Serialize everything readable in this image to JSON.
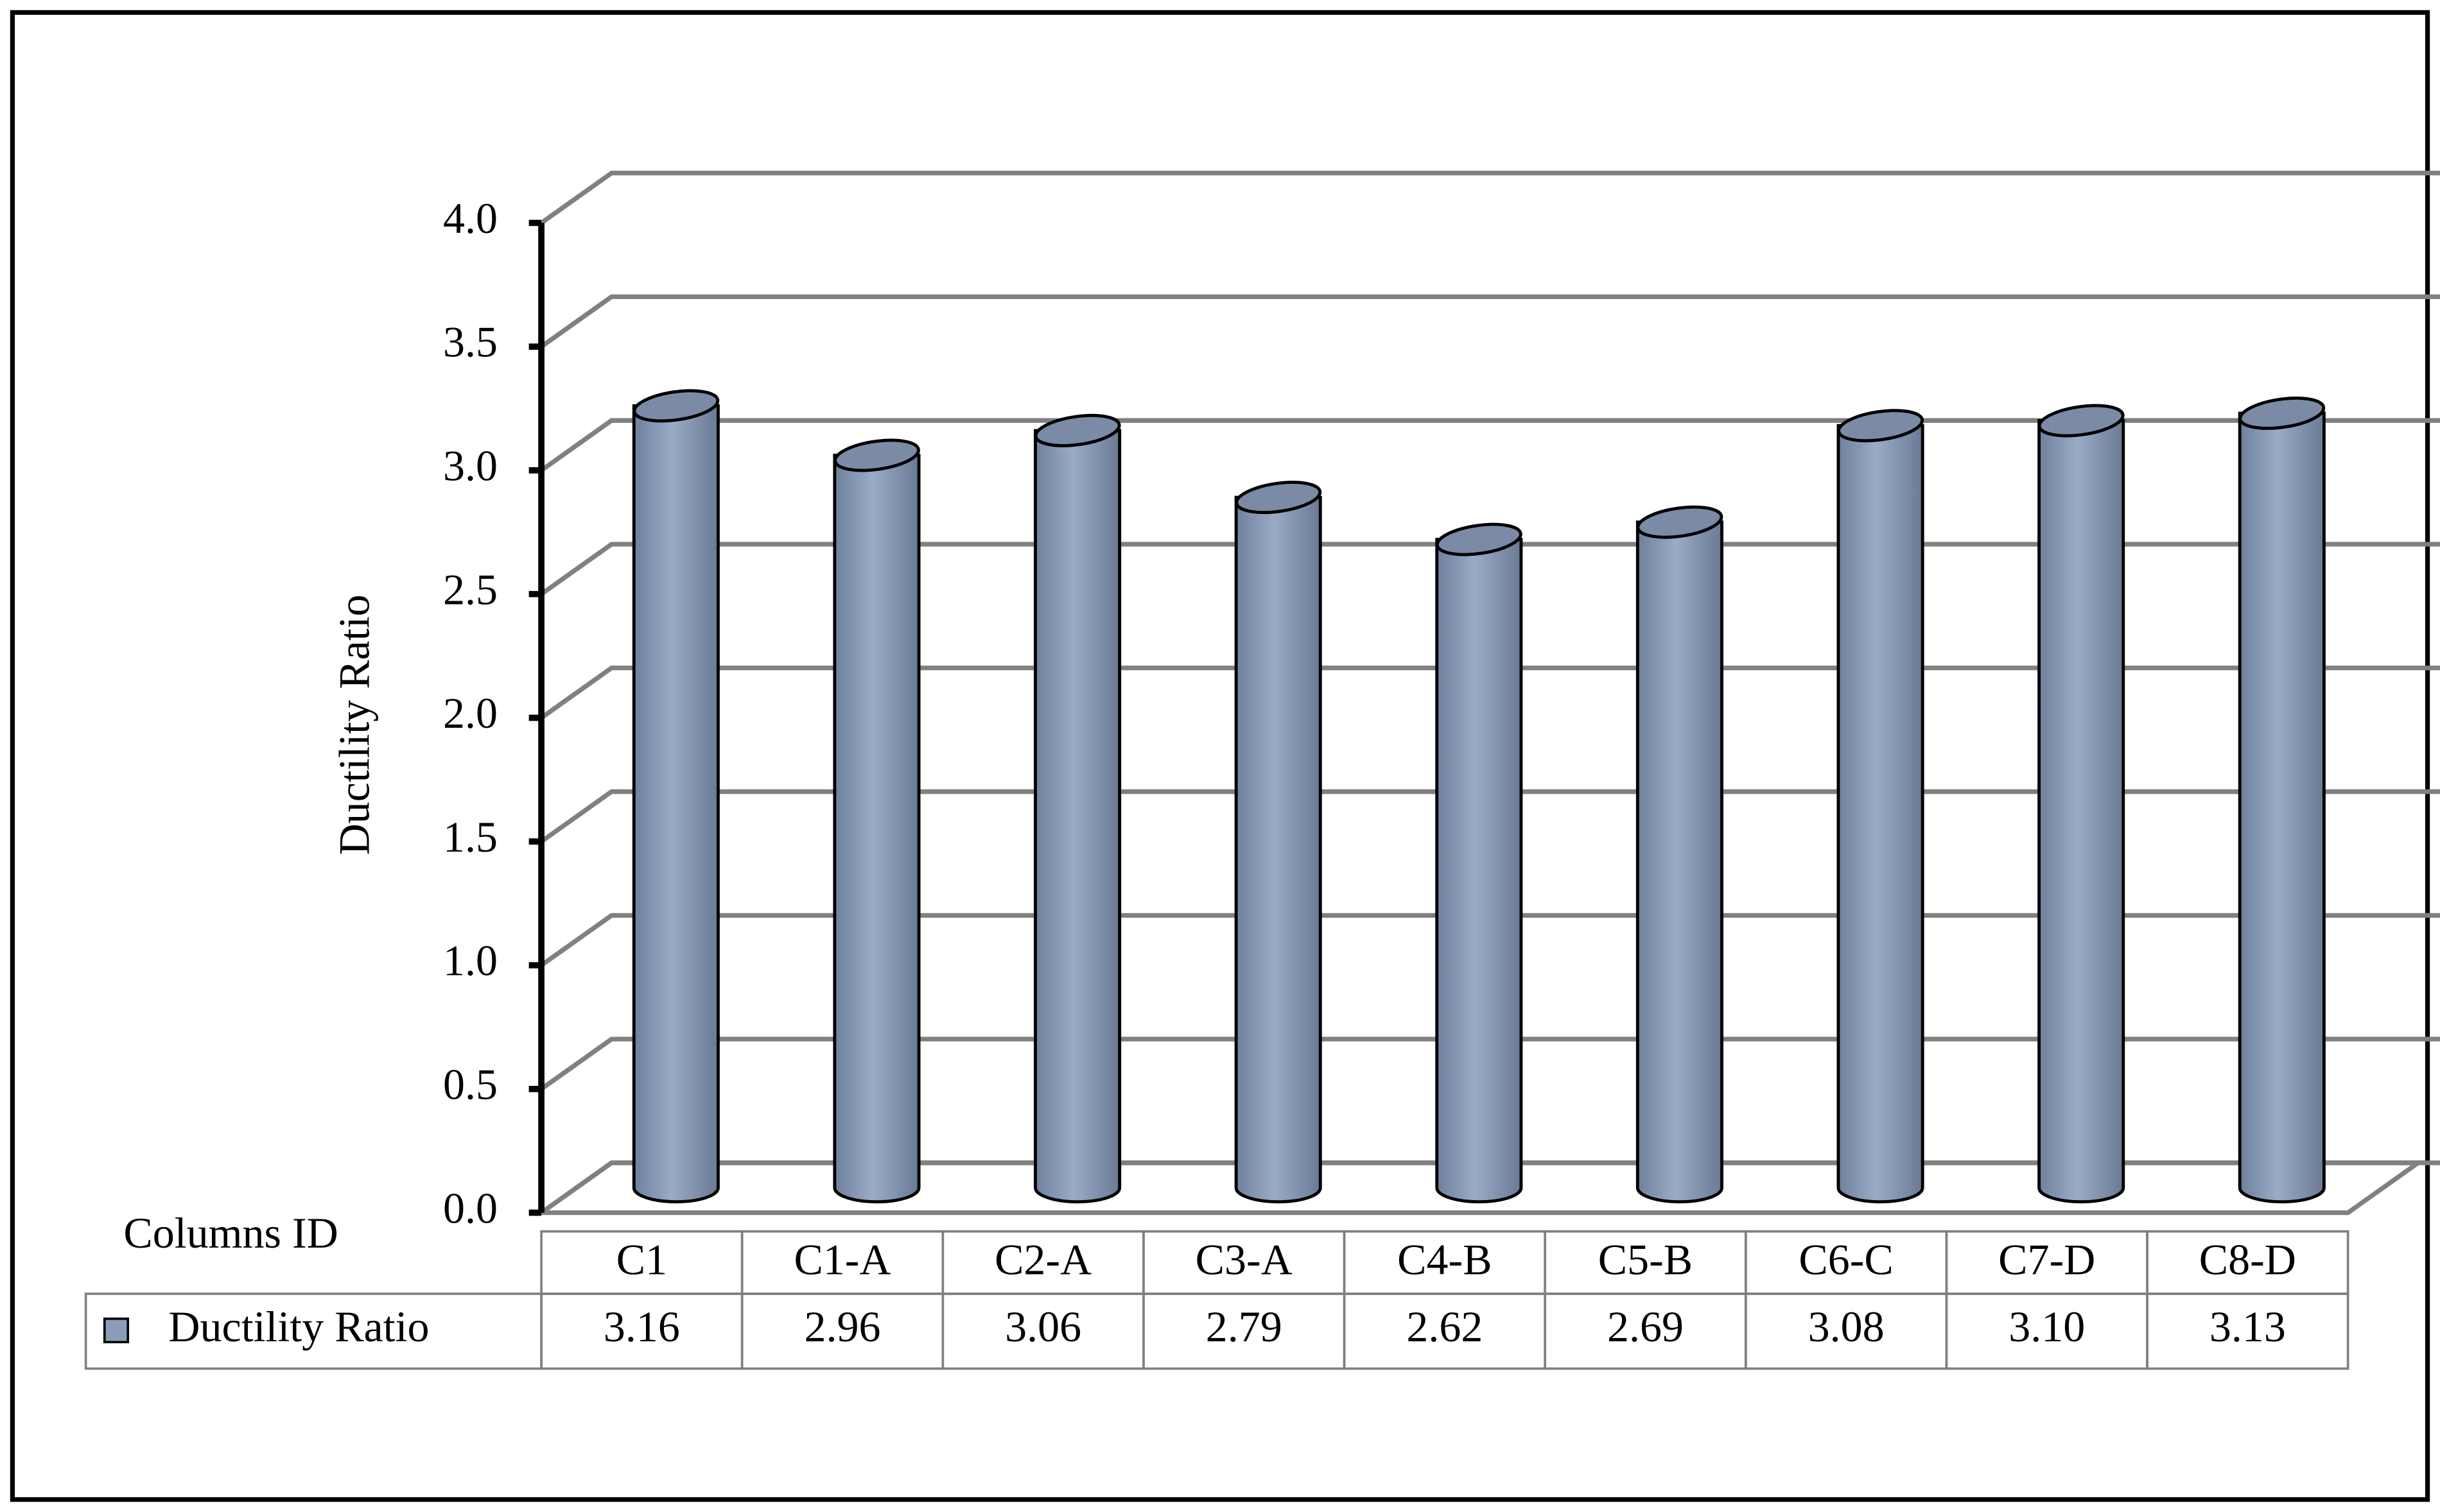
{
  "chart_data": {
    "type": "bar",
    "y_label": "Ductility Ratio",
    "table_header": "Columns ID",
    "categories": [
      "C1",
      "C1-A",
      "C2-A",
      "C3-A",
      "C4-B",
      "C5-B",
      "C6-C",
      "C7-D",
      "C8-D"
    ],
    "series": [
      {
        "name": "Ductility Ratio",
        "color": "#8a9cb8",
        "values": [
          3.16,
          2.96,
          3.06,
          2.79,
          2.62,
          2.69,
          3.08,
          3.1,
          3.13
        ],
        "value_labels": [
          "3.16",
          "2.96",
          "3.06",
          "2.79",
          "2.62",
          "2.69",
          "3.08",
          "3.10",
          "3.13"
        ]
      }
    ],
    "ylim": [
      0,
      4
    ],
    "yticks": [
      {
        "value": 0,
        "label": "0.0"
      },
      {
        "value": 0.5,
        "label": "0.5"
      },
      {
        "value": 1,
        "label": "1.0"
      },
      {
        "value": 1.5,
        "label": "1.5"
      },
      {
        "value": 2,
        "label": "2.0"
      },
      {
        "value": 2.5,
        "label": "2.5"
      },
      {
        "value": 3,
        "label": "3.0"
      },
      {
        "value": 3.5,
        "label": "3.5"
      },
      {
        "value": 4,
        "label": "4.0"
      }
    ],
    "grid": true
  }
}
